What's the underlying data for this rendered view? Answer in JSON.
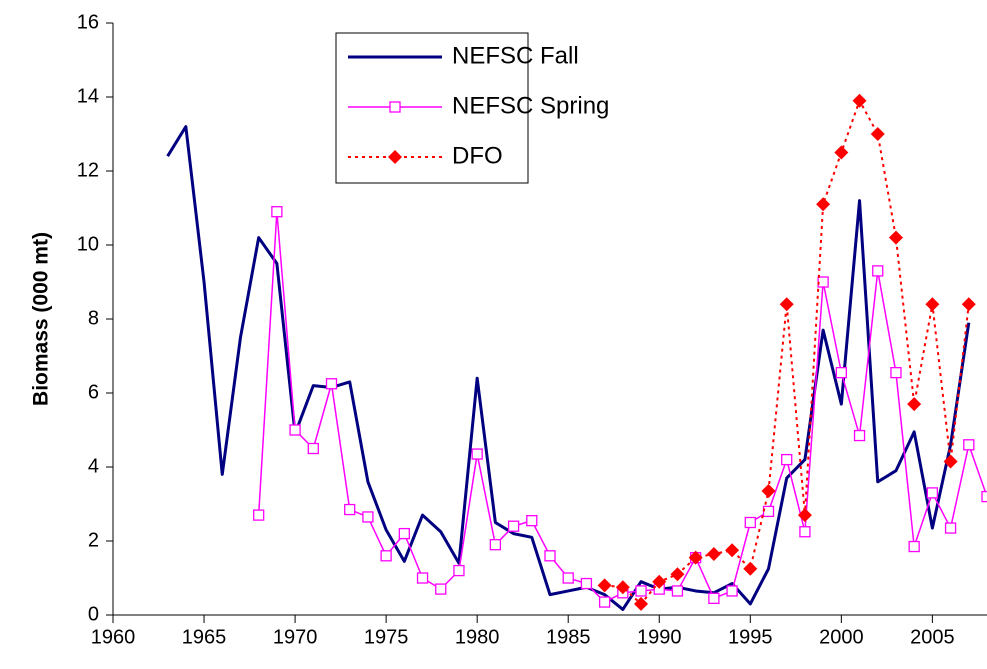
{
  "chart_data": {
    "type": "line",
    "y_label": "Biomass (000 mt)",
    "xlim": [
      1960,
      2008
    ],
    "xticks": [
      1960,
      1965,
      1970,
      1975,
      1980,
      1985,
      1990,
      1995,
      2000,
      2005
    ],
    "ylim": [
      0,
      16
    ],
    "yticks": [
      0,
      2,
      4,
      6,
      8,
      10,
      12,
      14,
      16
    ],
    "grid": false,
    "legend": "upper center",
    "series": [
      {
        "name": "NEFSC Fall",
        "color": "#000080",
        "marker": "none",
        "line": "solid",
        "x": [
          1963,
          1964,
          1965,
          1966,
          1967,
          1968,
          1969,
          1970,
          1971,
          1972,
          1973,
          1974,
          1975,
          1976,
          1977,
          1978,
          1979,
          1980,
          1981,
          1982,
          1983,
          1984,
          1985,
          1986,
          1987,
          1988,
          1989,
          1990,
          1991,
          1992,
          1993,
          1994,
          1995,
          1996,
          1997,
          1998,
          1999,
          2000,
          2001,
          2002,
          2003,
          2004,
          2005,
          2006,
          2007
        ],
        "values": [
          12.4,
          13.2,
          9.0,
          3.8,
          7.5,
          10.2,
          9.5,
          4.9,
          6.2,
          6.15,
          6.3,
          3.6,
          2.3,
          1.45,
          2.7,
          2.25,
          1.4,
          6.4,
          2.5,
          2.2,
          2.1,
          0.55,
          0.65,
          0.75,
          0.55,
          0.15,
          0.9,
          0.7,
          0.75,
          0.65,
          0.6,
          0.85,
          0.3,
          1.25,
          3.7,
          4.2,
          7.7,
          5.7,
          11.2,
          3.6,
          3.9,
          4.95,
          2.35,
          4.6,
          7.9
        ]
      },
      {
        "name": "NEFSC Spring",
        "color": "#ff00ff",
        "marker": "square",
        "line": "solid",
        "x": [
          1968,
          1969,
          1970,
          1971,
          1972,
          1973,
          1974,
          1975,
          1976,
          1977,
          1978,
          1979,
          1980,
          1981,
          1982,
          1983,
          1984,
          1985,
          1986,
          1987,
          1988,
          1989,
          1990,
          1991,
          1992,
          1993,
          1994,
          1995,
          1996,
          1997,
          1998,
          1999,
          2000,
          2001,
          2002,
          2003,
          2004,
          2005,
          2006,
          2007,
          2008
        ],
        "values": [
          2.7,
          10.9,
          5.0,
          4.5,
          6.25,
          2.85,
          2.65,
          1.6,
          2.2,
          1.0,
          0.7,
          1.2,
          4.35,
          1.9,
          2.4,
          2.55,
          1.6,
          1.0,
          0.85,
          0.35,
          0.6,
          0.65,
          0.7,
          0.65,
          1.55,
          0.45,
          0.65,
          2.5,
          2.8,
          4.2,
          2.25,
          9.0,
          6.55,
          4.85,
          9.3,
          6.55,
          1.85,
          3.3,
          2.35,
          4.6,
          3.2
        ]
      },
      {
        "name": "DFO",
        "color": "#ff0000",
        "marker": "diamond",
        "line": "dotted",
        "x": [
          1987,
          1988,
          1989,
          1990,
          1991,
          1992,
          1993,
          1994,
          1995,
          1996,
          1997,
          1998,
          1999,
          2000,
          2001,
          2002,
          2003,
          2004,
          2005,
          2006,
          2007
        ],
        "values": [
          0.8,
          0.75,
          0.3,
          0.9,
          1.1,
          1.55,
          1.65,
          1.75,
          1.25,
          3.35,
          8.4,
          2.7,
          11.1,
          12.5,
          13.9,
          13.0,
          10.2,
          5.7,
          8.4,
          4.15,
          8.4
        ]
      }
    ]
  }
}
